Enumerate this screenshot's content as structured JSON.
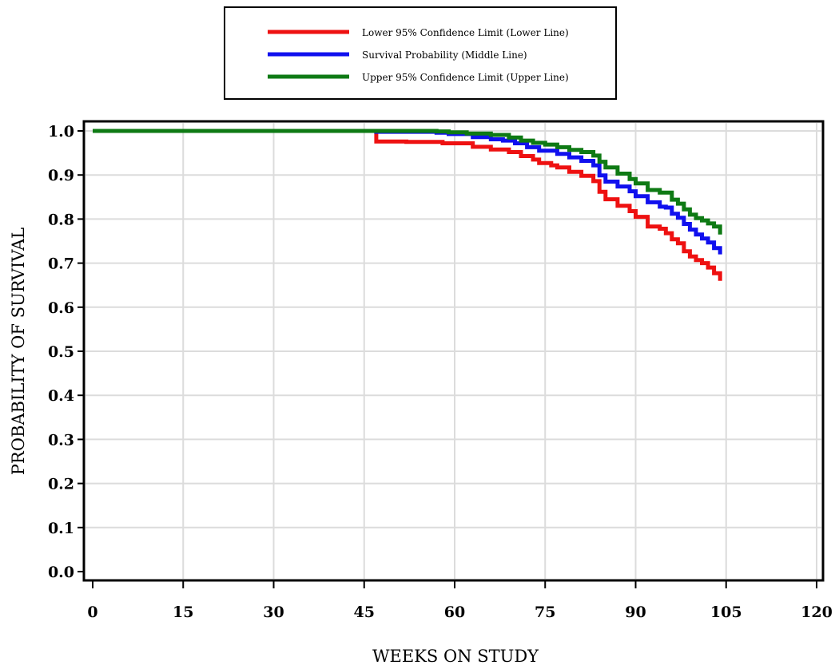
{
  "chart_data": {
    "type": "line",
    "title": "",
    "xlabel": "WEEKS ON STUDY",
    "ylabel": "PROBABILITY OF SURVIVAL",
    "xlim": [
      0,
      120
    ],
    "ylim": [
      0,
      1.0
    ],
    "xticks": [
      "0",
      "15",
      "30",
      "45",
      "60",
      "75",
      "90",
      "105",
      "120"
    ],
    "yticks": [
      "0.0",
      "0.1",
      "0.2",
      "0.3",
      "0.4",
      "0.5",
      "0.6",
      "0.7",
      "0.8",
      "0.9",
      "1.0"
    ],
    "grid": true,
    "step": true,
    "legend_position": "top-center",
    "series": [
      {
        "name": "Lower 95% Confidence Limit (Lower Line)",
        "color": "#ee1111",
        "x": [
          0,
          47,
          52,
          58,
          63,
          66,
          69,
          71,
          73,
          74,
          76,
          77,
          79,
          81,
          83,
          84,
          85,
          87,
          89,
          90,
          92,
          94,
          95,
          96,
          97,
          98,
          99,
          100,
          101,
          102,
          103,
          104
        ],
        "y": [
          1.0,
          0.976,
          0.975,
          0.972,
          0.964,
          0.958,
          0.952,
          0.943,
          0.935,
          0.927,
          0.922,
          0.917,
          0.907,
          0.898,
          0.886,
          0.862,
          0.845,
          0.83,
          0.818,
          0.805,
          0.783,
          0.778,
          0.768,
          0.754,
          0.745,
          0.727,
          0.715,
          0.707,
          0.7,
          0.69,
          0.677,
          0.66
        ]
      },
      {
        "name": "Survival Probability (Middle Line)",
        "color": "#1010ee",
        "x": [
          0,
          47,
          57,
          59,
          63,
          66,
          68,
          70,
          72,
          74,
          77,
          79,
          81,
          83,
          84,
          85,
          87,
          89,
          90,
          92,
          94,
          95,
          96,
          97,
          98,
          99,
          100,
          101,
          102,
          103,
          104
        ],
        "y": [
          1.0,
          0.998,
          0.996,
          0.993,
          0.986,
          0.981,
          0.978,
          0.972,
          0.963,
          0.955,
          0.948,
          0.94,
          0.932,
          0.922,
          0.899,
          0.885,
          0.874,
          0.863,
          0.852,
          0.838,
          0.828,
          0.826,
          0.812,
          0.803,
          0.789,
          0.776,
          0.765,
          0.756,
          0.747,
          0.734,
          0.72
        ]
      },
      {
        "name": "Upper 95% Confidence Limit (Upper Line)",
        "color": "#0e7a14",
        "x": [
          0,
          57,
          59,
          62,
          66,
          69,
          71,
          73,
          75,
          77,
          79,
          81,
          83,
          84,
          85,
          87,
          89,
          90,
          92,
          94,
          96,
          97,
          98,
          99,
          100,
          101,
          102,
          103,
          104
        ],
        "y": [
          1.0,
          0.999,
          0.997,
          0.994,
          0.991,
          0.985,
          0.978,
          0.973,
          0.969,
          0.963,
          0.957,
          0.952,
          0.944,
          0.93,
          0.917,
          0.903,
          0.891,
          0.881,
          0.866,
          0.86,
          0.844,
          0.835,
          0.822,
          0.81,
          0.802,
          0.797,
          0.79,
          0.783,
          0.765
        ]
      }
    ]
  }
}
